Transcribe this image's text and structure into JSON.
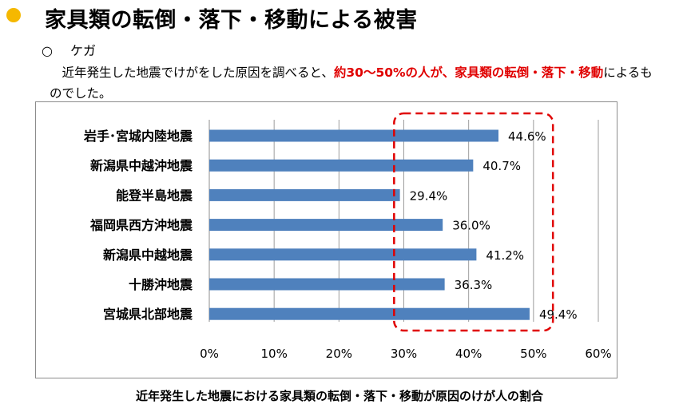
{
  "header": {
    "bullet_color": "#f5b800",
    "title": "家具類の転倒・落下・移動による被害"
  },
  "section": {
    "marker": "○",
    "label": "ケガ"
  },
  "paragraph": {
    "lead": "近年発生した地震でけがをした原因を調べると、",
    "highlight": "約30～50%の人が、家具類の転倒・落下・移動",
    "tail": "によるものでした。",
    "highlight_color": "#e00000"
  },
  "chart_data": {
    "type": "bar",
    "orientation": "horizontal",
    "categories": [
      "岩手･宮城内陸地震",
      "新潟県中越沖地震",
      "能登半島地震",
      "福岡県西方沖地震",
      "新潟県中越地震",
      "十勝沖地震",
      "宮城県北部地震"
    ],
    "values": [
      44.6,
      40.7,
      29.4,
      36.0,
      41.2,
      36.3,
      49.4
    ],
    "value_labels": [
      "44.6%",
      "40.7%",
      "29.4%",
      "36.0%",
      "41.2%",
      "36.3%",
      "49.4%"
    ],
    "xlim": [
      0,
      60
    ],
    "xticks": [
      0,
      10,
      20,
      30,
      40,
      50,
      60
    ],
    "xtick_labels": [
      "0%",
      "10%",
      "20%",
      "30%",
      "40%",
      "50%",
      "60%"
    ],
    "grid": true,
    "bar_color": "#4f81bd",
    "grid_color": "#9e9e9e",
    "highlight_range": [
      28.5,
      53
    ],
    "highlight_color": "#e00000"
  },
  "caption": "近年発生した地震における家具類の転倒・落下・移動が原因のけが人の割合"
}
